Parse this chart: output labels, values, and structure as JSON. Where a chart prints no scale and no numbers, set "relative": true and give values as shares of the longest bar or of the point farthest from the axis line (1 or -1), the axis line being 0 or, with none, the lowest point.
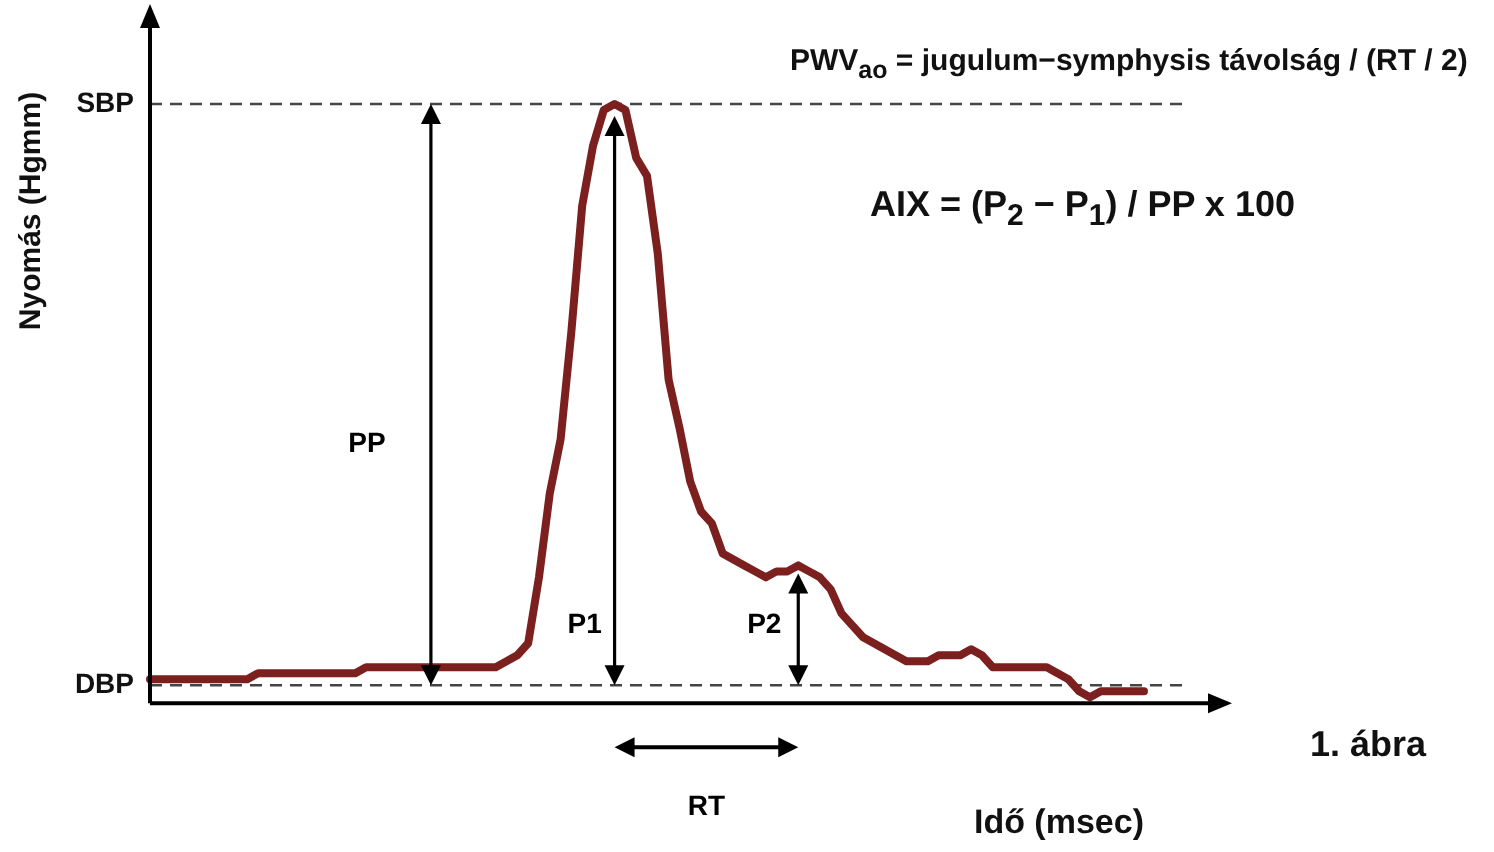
{
  "chart_data": {
    "type": "line",
    "relative": true,
    "xlabel": "Idő (msec)",
    "ylabel": "Nyomás (Hgmm)",
    "categories": [
      null,
      null,
      null,
      null,
      null,
      null,
      null,
      null,
      null,
      null,
      null,
      null,
      null,
      null,
      null,
      null,
      null,
      null,
      null,
      null,
      null,
      null,
      null,
      null,
      null,
      null,
      null,
      null,
      null,
      null,
      null,
      null,
      null,
      null,
      null,
      null,
      null,
      null,
      null,
      null,
      null,
      null,
      null,
      null,
      null,
      null,
      null,
      null,
      null,
      null,
      null,
      null,
      null,
      null,
      null,
      null,
      null,
      null,
      null,
      null,
      null,
      null,
      null,
      null,
      null,
      null,
      null,
      null,
      null,
      null,
      null,
      null,
      null,
      null,
      null,
      null,
      null,
      null,
      null,
      null,
      null,
      null,
      null,
      null,
      null,
      null,
      null,
      null,
      null,
      null,
      null,
      null,
      null
    ],
    "series": [
      {
        "color": "#7b1f1f",
        "values": [
          0.04,
          0.04,
          0.04,
          0.04,
          0.04,
          0.04,
          0.04,
          0.04,
          0.04,
          0.04,
          0.05,
          0.05,
          0.05,
          0.05,
          0.05,
          0.05,
          0.05,
          0.05,
          0.05,
          0.05,
          0.06,
          0.06,
          0.06,
          0.06,
          0.06,
          0.06,
          0.06,
          0.06,
          0.06,
          0.06,
          0.06,
          0.06,
          0.06,
          0.07,
          0.08,
          0.1,
          0.21,
          0.35,
          0.44,
          0.62,
          0.83,
          0.93,
          0.99,
          1,
          0.99,
          0.91,
          0.88,
          0.75,
          0.54,
          0.46,
          0.37,
          0.32,
          0.3,
          0.25,
          0.24,
          0.23,
          0.22,
          0.21,
          0.22,
          0.22,
          0.23,
          0.22,
          0.21,
          0.19,
          0.15,
          0.13,
          0.11,
          0.1,
          0.09,
          0.08,
          0.07,
          0.07,
          0.07,
          0.08,
          0.08,
          0.08,
          0.09,
          0.08,
          0.06,
          0.06,
          0.06,
          0.06,
          0.06,
          0.06,
          0.05,
          0.04,
          0.02,
          0.01,
          0.02,
          0.02,
          0.02,
          0.02,
          0.02
        ]
      }
    ],
    "ref_lines": [
      {
        "axis": "y",
        "value": 1,
        "label": "SBP",
        "line_style": "dashed",
        "color": "#444444"
      },
      {
        "axis": "y",
        "value": 0.03,
        "label": "DBP",
        "line_style": "dashed",
        "color": "#444444"
      }
    ],
    "annotations": [
      "PWV$_{ao}$ = jugulum−symphysis távolság / (RT / 2)",
      "AIX = (P$_{2}$ − P$_{1}$) / PP x 100",
      "1. ábra",
      "RT",
      "PP",
      "P1",
      "P2"
    ]
  }
}
